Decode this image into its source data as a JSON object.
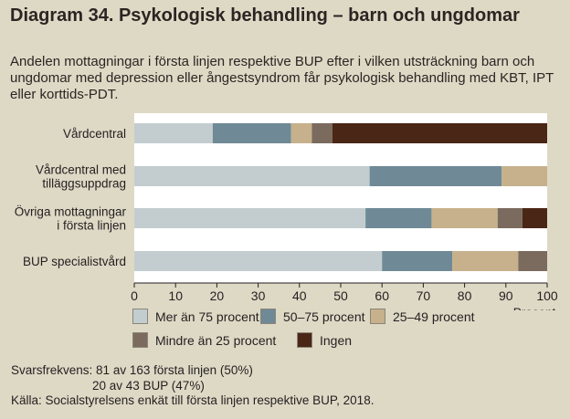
{
  "title": "Diagram 34. Psykologisk behandling –  barn och ungdomar",
  "subtitle": "Andelen mottagningar i första linjen respektive BUP efter i vilken utsträckning barn och ungdomar med depression eller ångestsyndrom får psykologisk behandling med KBT, IPT eller korttids-PDT.",
  "chart_data": {
    "type": "bar",
    "orientation": "horizontal",
    "stacked": true,
    "categories": [
      [
        "Vårdcentral"
      ],
      [
        "Vårdcentral med",
        "tilläggsuppdrag"
      ],
      [
        "Övriga mottagningar",
        "i första linjen"
      ],
      [
        "BUP specialistvård"
      ]
    ],
    "series": [
      {
        "name": "Mer än 75 procent",
        "color": "#c3cdcf",
        "values": [
          19,
          57,
          56,
          60
        ]
      },
      {
        "name": "50–75 procent",
        "color": "#6f8a96",
        "values": [
          19,
          32,
          16,
          17
        ]
      },
      {
        "name": "25–49 procent",
        "color": "#c6b18c",
        "values": [
          5,
          11,
          16,
          16
        ]
      },
      {
        "name": "Mindre än 25 procent",
        "color": "#7b6b5e",
        "values": [
          5,
          0,
          6,
          7
        ]
      },
      {
        "name": "Ingen",
        "color": "#4a2616",
        "values": [
          52,
          0,
          6,
          0
        ]
      }
    ],
    "xlim": [
      0,
      100
    ],
    "xticks": [
      0,
      10,
      20,
      30,
      40,
      50,
      60,
      70,
      80,
      90,
      100
    ],
    "xlabel": "Procent",
    "grid": false,
    "legend_position": "bottom"
  },
  "footer": {
    "svarsfrekvens_label": "Svarsfrekvens:",
    "svarsfrekvens_line1": "81 av 163 första linjen (50%)",
    "svarsfrekvens_line2": "20 av 43 BUP (47%)",
    "source": "Källa: Socialstyrelsens enkät till första linjen respektive BUP, 2018."
  }
}
